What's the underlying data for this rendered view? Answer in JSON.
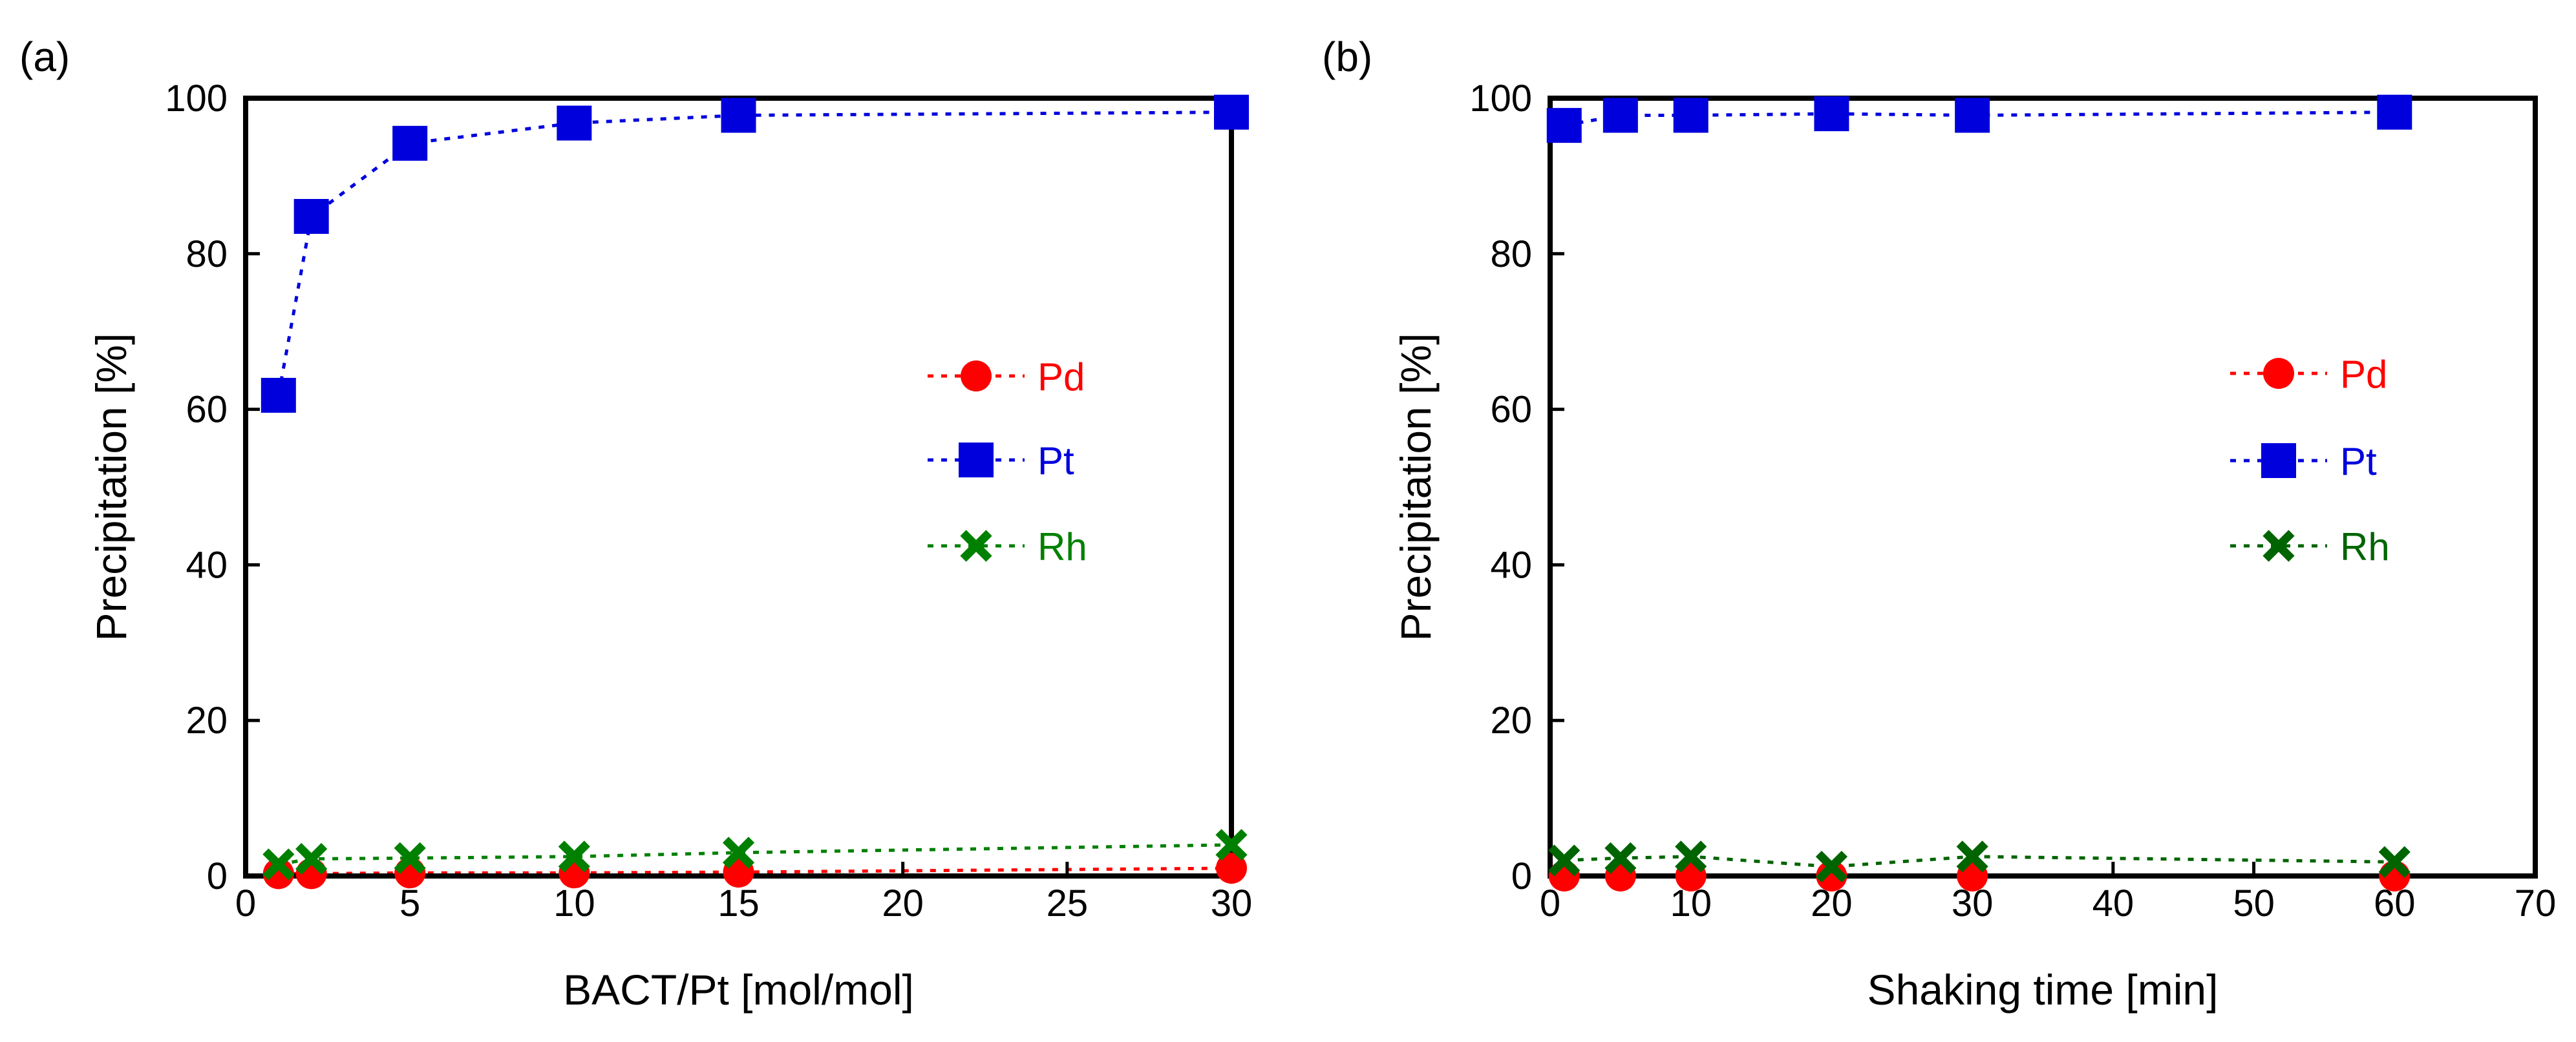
{
  "chart_data": [
    {
      "panel_label": "(a)",
      "type": "line",
      "title": "",
      "xlabel": "BACT/Pt [mol/mol]",
      "ylabel": "Precipitation [%]",
      "xlim": [
        0,
        30
      ],
      "ylim": [
        0,
        100
      ],
      "xticks": [
        0,
        5,
        10,
        15,
        20,
        25,
        30
      ],
      "yticks": [
        0,
        20,
        40,
        60,
        80,
        100
      ],
      "grid": false,
      "legend_position": "center-right",
      "series": [
        {
          "name": "Pd",
          "marker": "circle",
          "color": "#ff0000",
          "x": [
            1,
            2,
            5,
            10,
            15,
            30
          ],
          "y": [
            0.3,
            0.3,
            0.4,
            0.4,
            0.5,
            1.0
          ]
        },
        {
          "name": "Pt",
          "marker": "square",
          "color": "#0000dd",
          "x": [
            1,
            2,
            5,
            10,
            15,
            30
          ],
          "y": [
            61.8,
            84.8,
            94.2,
            96.8,
            97.8,
            98.2
          ]
        },
        {
          "name": "Rh",
          "marker": "cross",
          "color": "#008000",
          "x": [
            1,
            2,
            5,
            10,
            15,
            30
          ],
          "y": [
            1.5,
            2.2,
            2.3,
            2.5,
            3.0,
            4.0
          ]
        }
      ]
    },
    {
      "panel_label": "(b)",
      "type": "line",
      "title": "",
      "xlabel": "Shaking time [min]",
      "ylabel": "Precipitation [%]",
      "xlim": [
        0,
        70
      ],
      "ylim": [
        0,
        100
      ],
      "xticks": [
        0,
        10,
        20,
        30,
        40,
        50,
        60,
        70
      ],
      "yticks": [
        0,
        20,
        40,
        60,
        80,
        100
      ],
      "grid": false,
      "legend_position": "center-right",
      "series": [
        {
          "name": "Pd",
          "marker": "circle",
          "color": "#ff0000",
          "x": [
            1,
            5,
            10,
            20,
            30,
            60
          ],
          "y": [
            0,
            0,
            0,
            0,
            0,
            0
          ]
        },
        {
          "name": "Pt",
          "marker": "square",
          "color": "#0000dd",
          "x": [
            1,
            5,
            10,
            20,
            30,
            60
          ],
          "y": [
            96.5,
            97.8,
            97.8,
            98.0,
            97.8,
            98.2
          ]
        },
        {
          "name": "Rh",
          "marker": "cross",
          "color": "#006400",
          "x": [
            1,
            5,
            10,
            20,
            30,
            60
          ],
          "y": [
            2.0,
            2.3,
            2.5,
            1.2,
            2.5,
            1.8
          ]
        }
      ]
    }
  ]
}
